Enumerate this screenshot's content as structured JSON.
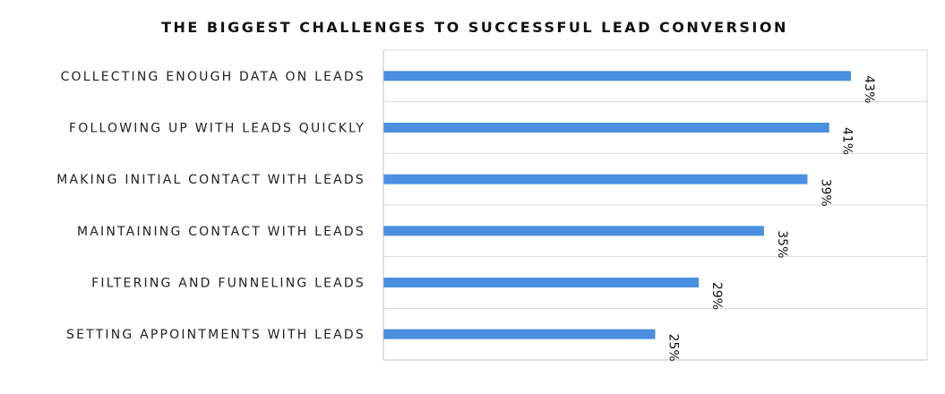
{
  "chart_data": {
    "type": "bar",
    "orientation": "horizontal",
    "title": "THE BIGGEST CHALLENGES TO SUCCESSFUL LEAD CONVERSION",
    "xlabel": "",
    "ylabel": "",
    "categories": [
      "COLLECTING ENOUGH DATA ON LEADS",
      "FOLLOWING UP WITH LEADS QUICKLY",
      "MAKING INITIAL CONTACT WITH LEADS",
      "MAINTAINING CONTACT WITH LEADS",
      "FILTERING AND FUNNELING LEADS",
      "SETTING APPOINTMENTS WITH LEADS"
    ],
    "values": [
      43,
      41,
      39,
      35,
      29,
      25
    ],
    "data_labels": [
      "43%",
      "41%",
      "39%",
      "35%",
      "29%",
      "25%"
    ],
    "xlim": [
      0,
      50
    ],
    "grid": false,
    "legend": "none",
    "bar_color": "#4A8FE0"
  }
}
